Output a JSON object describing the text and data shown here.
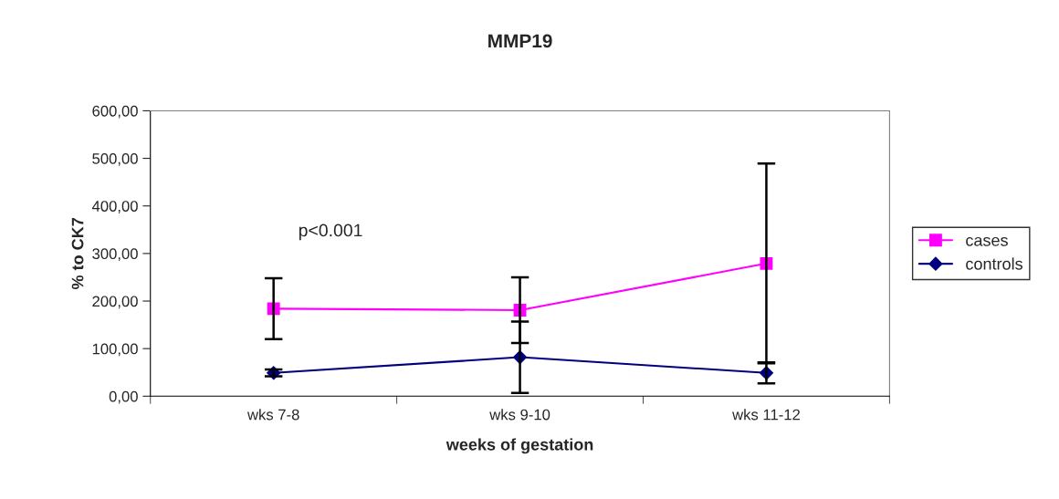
{
  "chart_data": {
    "type": "line",
    "title": "MMP19",
    "xlabel": "weeks of gestation",
    "ylabel": "% to CK7",
    "categories": [
      "wks 7-8",
      "wks 9-10",
      "wks 11-12"
    ],
    "series": [
      {
        "name": "cases",
        "color": "#ff00ff",
        "marker": "square",
        "values": [
          184,
          181,
          279
        ],
        "errors": [
          64,
          69,
          210
        ]
      },
      {
        "name": "controls",
        "color": "#000080",
        "marker": "diamond",
        "values": [
          49,
          82,
          49
        ],
        "errors": [
          7,
          75,
          22
        ]
      }
    ],
    "ylim": [
      0,
      600
    ],
    "yticks": [
      {
        "value": 0,
        "label": "0,00"
      },
      {
        "value": 100,
        "label": "100,00"
      },
      {
        "value": 200,
        "label": "200,00"
      },
      {
        "value": 300,
        "label": "300,00"
      },
      {
        "value": 400,
        "label": "400,00"
      },
      {
        "value": 500,
        "label": "500,00"
      },
      {
        "value": 600,
        "label": "600,00"
      }
    ],
    "grid": false,
    "legend": "right",
    "annotations": [
      "p<0.001"
    ]
  }
}
